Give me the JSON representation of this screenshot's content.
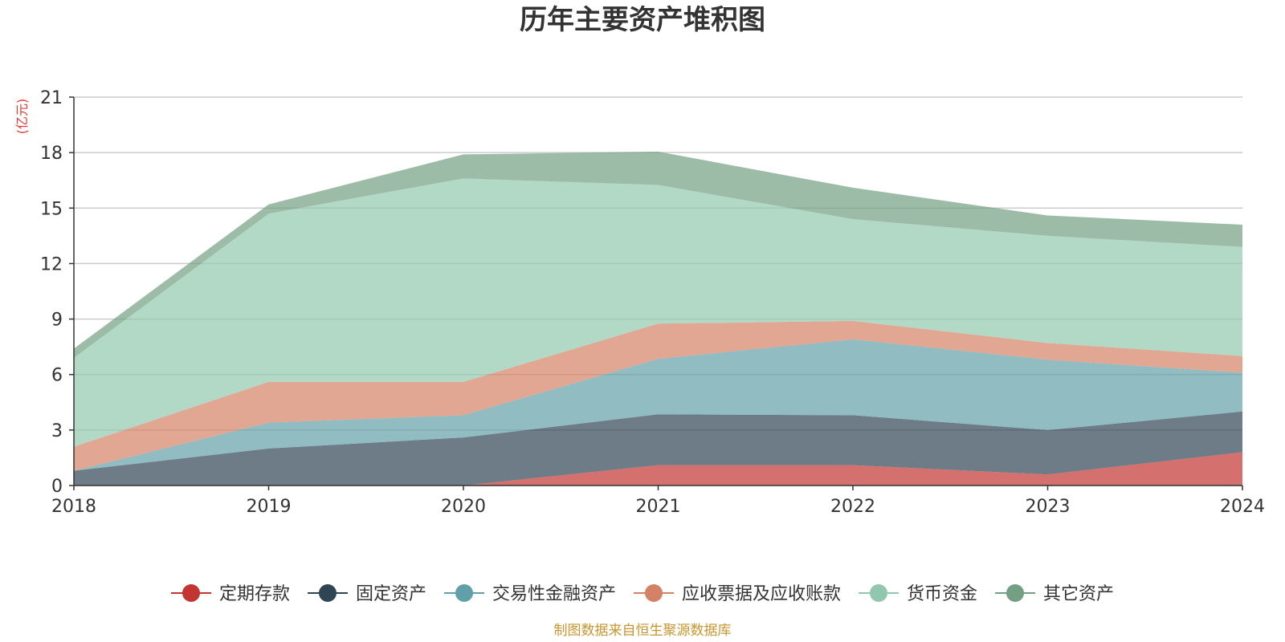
{
  "chart_data": {
    "type": "area",
    "stacked": true,
    "title": "历年主要资产堆积图",
    "ylabel": "(亿元)",
    "xlabel": "",
    "categories": [
      "2018",
      "2019",
      "2020",
      "2021",
      "2022",
      "2023",
      "2024"
    ],
    "ylim": [
      0,
      21
    ],
    "yticks": [
      0,
      3,
      6,
      9,
      12,
      15,
      18,
      21
    ],
    "grid": true,
    "legend_position": "bottom",
    "series": [
      {
        "name": "定期存款",
        "color": "#c23531",
        "values": [
          0,
          0,
          0,
          1.1,
          1.1,
          0.6,
          1.8
        ]
      },
      {
        "name": "固定资产",
        "color": "#2f4554",
        "values": [
          0.8,
          2.0,
          2.6,
          2.75,
          2.7,
          2.4,
          2.2
        ]
      },
      {
        "name": "交易性金融资产",
        "color": "#61a0a8",
        "values": [
          0,
          1.4,
          1.2,
          3.0,
          4.1,
          3.8,
          2.1
        ]
      },
      {
        "name": "应收票据及应收账款",
        "color": "#d48265",
        "values": [
          1.3,
          2.2,
          1.8,
          1.9,
          1.0,
          0.9,
          0.9
        ]
      },
      {
        "name": "货币资金",
        "color": "#91c7ae",
        "values": [
          4.8,
          9.1,
          11.0,
          7.5,
          5.5,
          5.8,
          5.9
        ]
      },
      {
        "name": "其它资产",
        "color": "#749f83",
        "values": [
          0.5,
          0.5,
          1.3,
          1.8,
          1.7,
          1.1,
          1.2
        ]
      }
    ],
    "source_note": "制图数据来自恒生聚源数据库"
  }
}
